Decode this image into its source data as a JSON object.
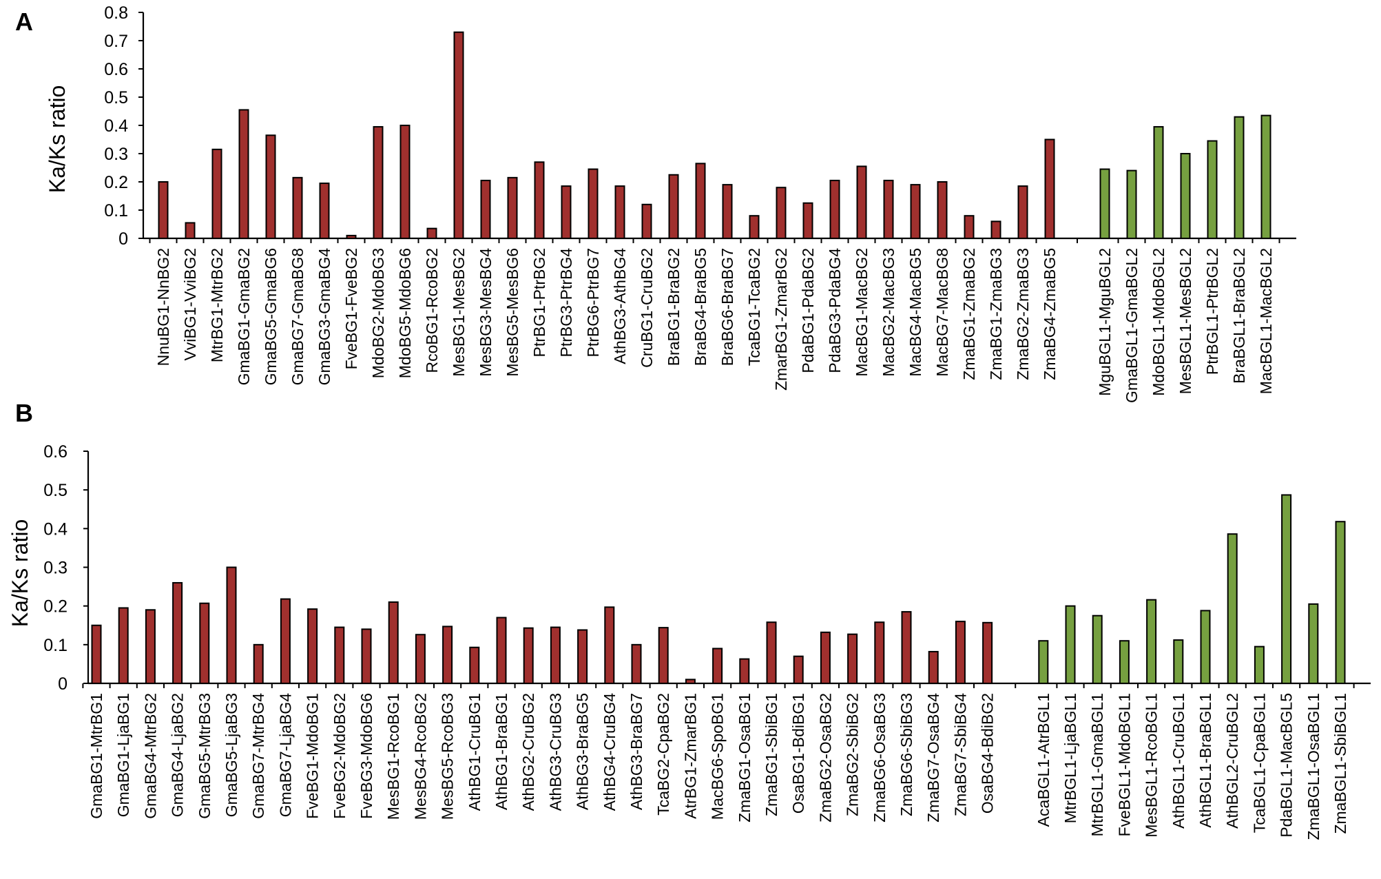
{
  "colors": {
    "group1": "#a0302e",
    "group2": "#76a040"
  },
  "chart_data": [
    {
      "panel": "A",
      "type": "bar",
      "ylabel": "Ka/Ks ratio",
      "xlabel": "",
      "ylim": [
        0,
        0.8
      ],
      "yticks": [
        "0",
        "0.1",
        "0.2",
        "0.3",
        "0.4",
        "0.5",
        "0.6",
        "0.7",
        "0.8"
      ],
      "grid": false,
      "legend": "none",
      "categories": [
        "NnuBG1-NnBG2",
        "VviBG1-VviBG2",
        "MtrBG1-MtrBG2",
        "GmaBG1-GmaBG2",
        "GmaBG5-GmaBG6",
        "GmaBG7-GmaBG8",
        "GmaBG3-GmaBG4",
        "FveBG1-FveBG2",
        "MdoBG2-MdoBG3",
        "MdoBG5-MdoBG6",
        "RcoBG1-RcoBG2",
        "MesBG1-MesBG2",
        "MesBG3-MesBG4",
        "MesBG5-MesBG6",
        "PtrBG1-PtrBG2",
        "PtrBG3-PtrBG4",
        "PtrBG6-PtrBG7",
        "AthBG3-AthBG4",
        "CruBG1-CruBG2",
        "BraBG1-BraBG2",
        "BraBG4-BraBG5",
        "BraBG6-BraBG7",
        "TcaBG1-TcaBG2",
        "ZmarBG1-ZmarBG2",
        "PdaBG1-PdaBG2",
        "PdaBG3-PdaBG4",
        "MacBG1-MacBG2",
        "MacBG2-MacBG3",
        "MacBG4-MacBG5",
        "MacBG7-MacBG8",
        "ZmaBG1-ZmaBG2",
        "ZmaBG1-ZmaBG3",
        "ZmaBG2-ZmaBG3",
        "ZmaBG4-ZmaBG5",
        "MguBGL1-MguBGL2",
        "GmaBGL1-GmaBGL2",
        "MdoBGL1-MdoBGL2",
        "MesBGL1-MesBGL2",
        "PtrBGL1-PtrBGL2",
        "BraBGL1-BraBGL2",
        "MacBGL1-MacBGL2"
      ],
      "values": [
        0.2,
        0.055,
        0.315,
        0.455,
        0.365,
        0.215,
        0.195,
        0.01,
        0.395,
        0.4,
        0.035,
        0.73,
        0.205,
        0.215,
        0.27,
        0.185,
        0.245,
        0.185,
        0.12,
        0.225,
        0.265,
        0.19,
        0.08,
        0.18,
        0.125,
        0.205,
        0.255,
        0.205,
        0.19,
        0.2,
        0.08,
        0.06,
        0.185,
        0.35,
        0.245,
        0.24,
        0.395,
        0.3,
        0.345,
        0.43,
        0.435
      ],
      "groups": [
        1,
        1,
        1,
        1,
        1,
        1,
        1,
        1,
        1,
        1,
        1,
        1,
        1,
        1,
        1,
        1,
        1,
        1,
        1,
        1,
        1,
        1,
        1,
        1,
        1,
        1,
        1,
        1,
        1,
        1,
        1,
        1,
        1,
        1,
        2,
        2,
        2,
        2,
        2,
        2,
        2
      ]
    },
    {
      "panel": "B",
      "type": "bar",
      "ylabel": "Ka/Ks ratio",
      "xlabel": "",
      "ylim": [
        0,
        0.6
      ],
      "yticks": [
        "0",
        "0.1",
        "0.2",
        "0.3",
        "0.4",
        "0.5",
        "0.6"
      ],
      "grid": false,
      "legend": "none",
      "categories": [
        "GmaBG1-MtrBG1",
        "GmaBG1-LjaBG1",
        "GmaBG4-MtrBG2",
        "GmaBG4-LjaBG2",
        "GmaBG5-MtrBG3",
        "GmaBG5-LjaBG3",
        "GmaBG7-MtrBG4",
        "GmaBG7-LjaBG4",
        "FveBG1-MdoBG1",
        "FveBG2-MdoBG2",
        "FveBG3-MdoBG6",
        "MesBG1-RcoBG1",
        "MesBG4-RcoBG2",
        "MesBG5-RcoBG3",
        "AthBG1-CruBG1",
        "AthBG1-BraBG1",
        "AthBG2-CruBG2",
        "AthBG3-CruBG3",
        "AthBG3-BraBG5",
        "AthBG4-CruBG4",
        "AthBG3-BraBG7",
        "TcaBG2-CpaBG2",
        "AtrBG1-ZmarBG1",
        "MacBG6-SpoBG1",
        "ZmaBG1-OsaBG1",
        "ZmaBG1-SbiBG1",
        "OsaBG1-BdiBG1",
        "ZmaBG2-OsaBG2",
        "ZmaBG2-SbiBG2",
        "ZmaBG6-OsaBG3",
        "ZmaBG6-SbiBG3",
        "ZmaBG7-OsaBG4",
        "ZmaBG7-SbiBG4",
        "OsaBG4-BdiBG2",
        "AcaBGL1-AtrBGL1",
        "MtrBGL1-LjaBGL1",
        "MtrBGL1-GmaBGL1",
        "FveBGL1-MdoBGL1",
        "MesBGL1-RcoBGL1",
        "AthBGL1-CruBGL1",
        "AthBGL1-BraBGL1",
        "AthBGL2-CruBGL2",
        "TcaBGL1-CpaBGL1",
        "PdaBGL1-MacBGL5",
        "ZmaBGL1-OsaBGL1",
        "ZmaBGL1-SbiBGL1"
      ],
      "values": [
        0.15,
        0.195,
        0.19,
        0.26,
        0.207,
        0.3,
        0.1,
        0.218,
        0.192,
        0.145,
        0.14,
        0.21,
        0.126,
        0.147,
        0.093,
        0.17,
        0.143,
        0.145,
        0.138,
        0.197,
        0.1,
        0.144,
        0.01,
        0.09,
        0.063,
        0.158,
        0.07,
        0.132,
        0.127,
        0.158,
        0.185,
        0.082,
        0.16,
        0.157,
        0.11,
        0.2,
        0.175,
        0.11,
        0.216,
        0.112,
        0.188,
        0.386,
        0.095,
        0.487,
        0.205,
        0.418
      ],
      "groups": [
        1,
        1,
        1,
        1,
        1,
        1,
        1,
        1,
        1,
        1,
        1,
        1,
        1,
        1,
        1,
        1,
        1,
        1,
        1,
        1,
        1,
        1,
        1,
        1,
        1,
        1,
        1,
        1,
        1,
        1,
        1,
        1,
        1,
        1,
        2,
        2,
        2,
        2,
        2,
        2,
        2,
        2,
        2,
        2,
        2,
        2
      ]
    }
  ]
}
